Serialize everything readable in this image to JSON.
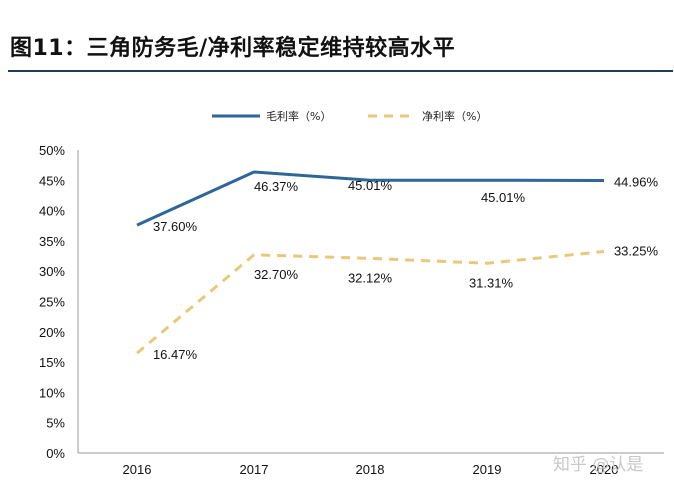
{
  "header": {
    "title": "图11：三角防务毛/净利率稳定维持较高水平"
  },
  "watermark": "知乎 @认是",
  "chart_data": {
    "type": "line",
    "categories": [
      "2016",
      "2017",
      "2018",
      "2019",
      "2020"
    ],
    "series": [
      {
        "name": "毛利率（%）",
        "values": [
          37.6,
          46.37,
          45.01,
          45.01,
          44.96
        ],
        "labels": [
          "37.60%",
          "46.37%",
          "45.01%",
          "45.01%",
          "44.96%"
        ],
        "color": "#2e6699",
        "style": "solid"
      },
      {
        "name": "净利率（%）",
        "values": [
          16.47,
          32.7,
          32.12,
          31.31,
          33.25
        ],
        "labels": [
          "16.47%",
          "32.70%",
          "32.12%",
          "31.31%",
          "33.25%"
        ],
        "color": "#e8c87a",
        "style": "dashed"
      }
    ],
    "ylim": [
      0,
      50
    ],
    "yticks": [
      "0%",
      "5%",
      "10%",
      "15%",
      "20%",
      "25%",
      "30%",
      "35%",
      "40%",
      "45%",
      "50%"
    ],
    "grid": false,
    "legend": "top-center"
  }
}
